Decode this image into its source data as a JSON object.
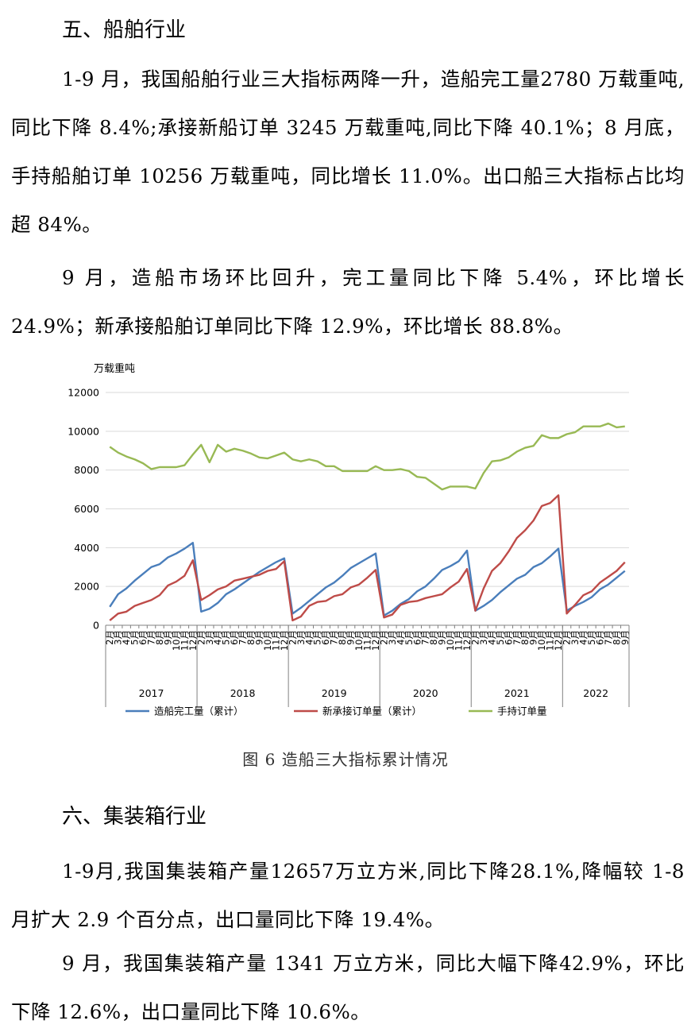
{
  "section5": {
    "heading": "五、船舶行业",
    "p1": "1-9 月，我国船舶行业三大指标两降一升，造船完工量2780 万载重吨,同比下降 8.4%;承接新船订单 3245 万载重吨,同比下降 40.1%；8 月底，手持船舶订单 10256 万载重吨，同比增长 11.0%。出口船三大指标占比均超 84%。",
    "p2": "9 月，造船市场环比回升，完工量同比下降 5.4%，环比增长 24.9%；新承接船舶订单同比下降 12.9%，环比增长 88.8%。"
  },
  "figure": {
    "caption": "图 6  造船三大指标累计情况"
  },
  "chart_data": {
    "type": "line",
    "ylabel": "万载重吨",
    "ylim": [
      0,
      12000
    ],
    "yticks": [
      0,
      2000,
      4000,
      6000,
      8000,
      10000,
      12000
    ],
    "grid": true,
    "legend_position": "bottom",
    "years": [
      {
        "label": "2017",
        "months": [
          "2月",
          "3月",
          "4月",
          "5月",
          "6月",
          "7月",
          "8月",
          "9月",
          "10月",
          "11月",
          "12月"
        ]
      },
      {
        "label": "2018",
        "months": [
          "2月",
          "3月",
          "4月",
          "5月",
          "6月",
          "7月",
          "8月",
          "9月",
          "10月",
          "11月",
          "12月"
        ]
      },
      {
        "label": "2019",
        "months": [
          "2月",
          "3月",
          "4月",
          "5月",
          "6月",
          "7月",
          "8月",
          "9月",
          "10月",
          "11月",
          "12月"
        ]
      },
      {
        "label": "2020",
        "months": [
          "2月",
          "3月",
          "4月",
          "5月",
          "6月",
          "7月",
          "8月",
          "9月",
          "10月",
          "11月",
          "12月"
        ]
      },
      {
        "label": "2021",
        "months": [
          "2月",
          "3月",
          "4月",
          "5月",
          "6月",
          "7月",
          "8月",
          "9月",
          "10月",
          "11月",
          "12月"
        ]
      },
      {
        "label": "2022",
        "months": [
          "2月",
          "3月",
          "4月",
          "5月",
          "6月",
          "7月",
          "8月",
          "9月"
        ]
      }
    ],
    "series": [
      {
        "name": "造船完工量（累计）",
        "color": "#4a7ebb",
        "values": [
          950,
          1600,
          1900,
          2300,
          2650,
          3000,
          3150,
          3500,
          3700,
          3950,
          4250,
          700,
          850,
          1150,
          1600,
          1850,
          2150,
          2450,
          2750,
          3000,
          3250,
          3450,
          600,
          900,
          1250,
          1600,
          1950,
          2200,
          2550,
          2950,
          3200,
          3450,
          3700,
          500,
          750,
          1100,
          1350,
          1750,
          2000,
          2400,
          2850,
          3050,
          3300,
          3850,
          750,
          1000,
          1300,
          1700,
          2050,
          2400,
          2600,
          3000,
          3200,
          3550,
          3950,
          750,
          1000,
          1200,
          1450,
          1850,
          2100,
          2450,
          2800
        ]
      },
      {
        "name": "新承接订单量（累计）",
        "color": "#be4b48",
        "values": [
          250,
          600,
          700,
          1000,
          1150,
          1300,
          1550,
          2050,
          2250,
          2550,
          3350,
          1300,
          1550,
          1850,
          2000,
          2300,
          2400,
          2500,
          2600,
          2800,
          2900,
          3300,
          250,
          450,
          1000,
          1200,
          1250,
          1500,
          1600,
          1950,
          2100,
          2450,
          2850,
          400,
          550,
          1050,
          1200,
          1250,
          1400,
          1500,
          1600,
          1950,
          2250,
          2900,
          750,
          1900,
          2800,
          3200,
          3800,
          4500,
          4900,
          5400,
          6150,
          6300,
          6700,
          600,
          1050,
          1550,
          1750,
          2200,
          2500,
          2800,
          3250
        ]
      },
      {
        "name": "手持订单量",
        "color": "#98b954",
        "values": [
          9200,
          8900,
          8700,
          8550,
          8350,
          8050,
          8150,
          8150,
          8150,
          8250,
          8800,
          9300,
          8400,
          9300,
          8950,
          9100,
          9000,
          8850,
          8650,
          8600,
          8750,
          8900,
          8550,
          8450,
          8550,
          8450,
          8200,
          8200,
          7950,
          7950,
          7950,
          7950,
          8200,
          8000,
          8000,
          8050,
          7950,
          7650,
          7600,
          7300,
          7000,
          7150,
          7150,
          7150,
          7050,
          7850,
          8450,
          8500,
          8650,
          8950,
          9150,
          9250,
          9800,
          9650,
          9650,
          9850,
          9950,
          10250,
          10250,
          10250,
          10400,
          10200,
          10250
        ]
      }
    ]
  },
  "section6": {
    "heading": "六、集装箱行业",
    "p1": "1-9月,我国集装箱产量12657万立方米,同比下降28.1%,降幅较 1-8 月扩大 2.9 个百分点，出口量同比下降 19.4%。",
    "p2": "9 月，我国集装箱产量 1341 万立方米，同比大幅下降42.9%，环比下降 12.6%，出口量同比下降 10.6%。"
  }
}
